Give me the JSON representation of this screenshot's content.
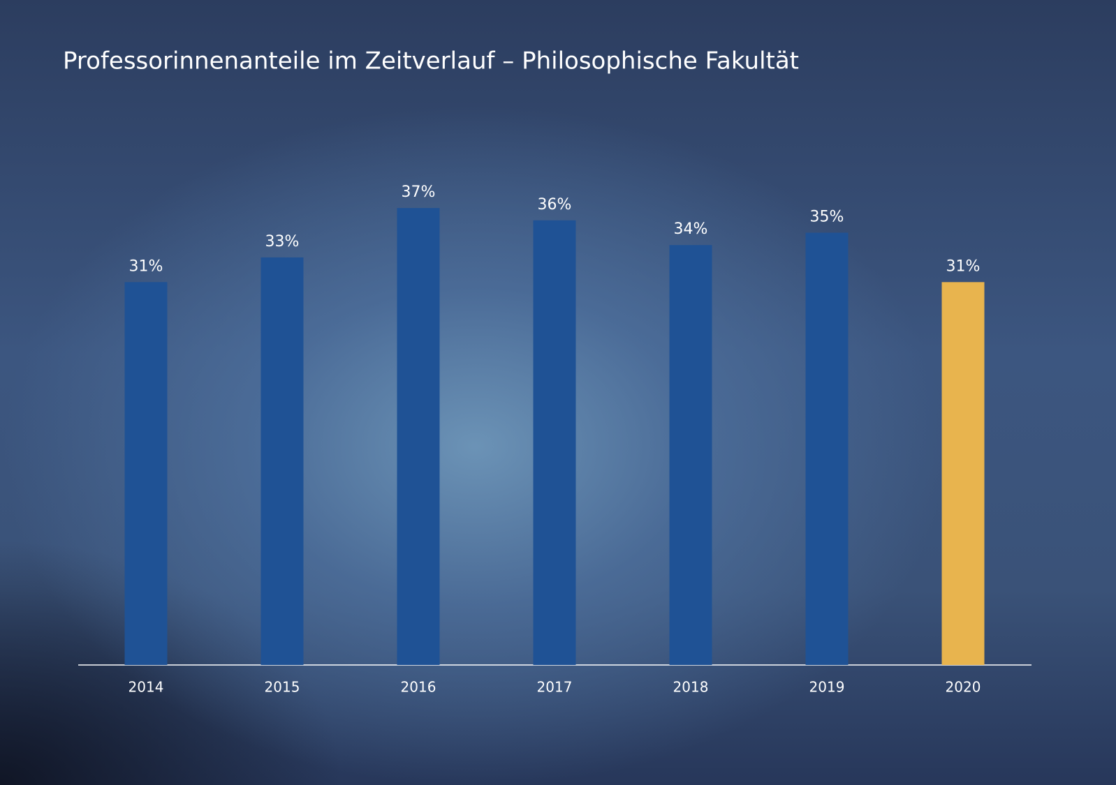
{
  "chart_data": {
    "type": "bar",
    "title": "Professorinnenanteile im Zeitverlauf – Philosophische Fakultät",
    "categories": [
      "2014",
      "2015",
      "2016",
      "2017",
      "2018",
      "2019",
      "2020"
    ],
    "values": [
      31,
      33,
      37,
      36,
      34,
      35,
      31
    ],
    "value_labels": [
      "31%",
      "33%",
      "37%",
      "36%",
      "34%",
      "35%",
      "31%"
    ],
    "colors": [
      "#1f5295",
      "#1f5295",
      "#1f5295",
      "#1f5295",
      "#1f5295",
      "#1f5295",
      "#e8b44e"
    ]
  }
}
